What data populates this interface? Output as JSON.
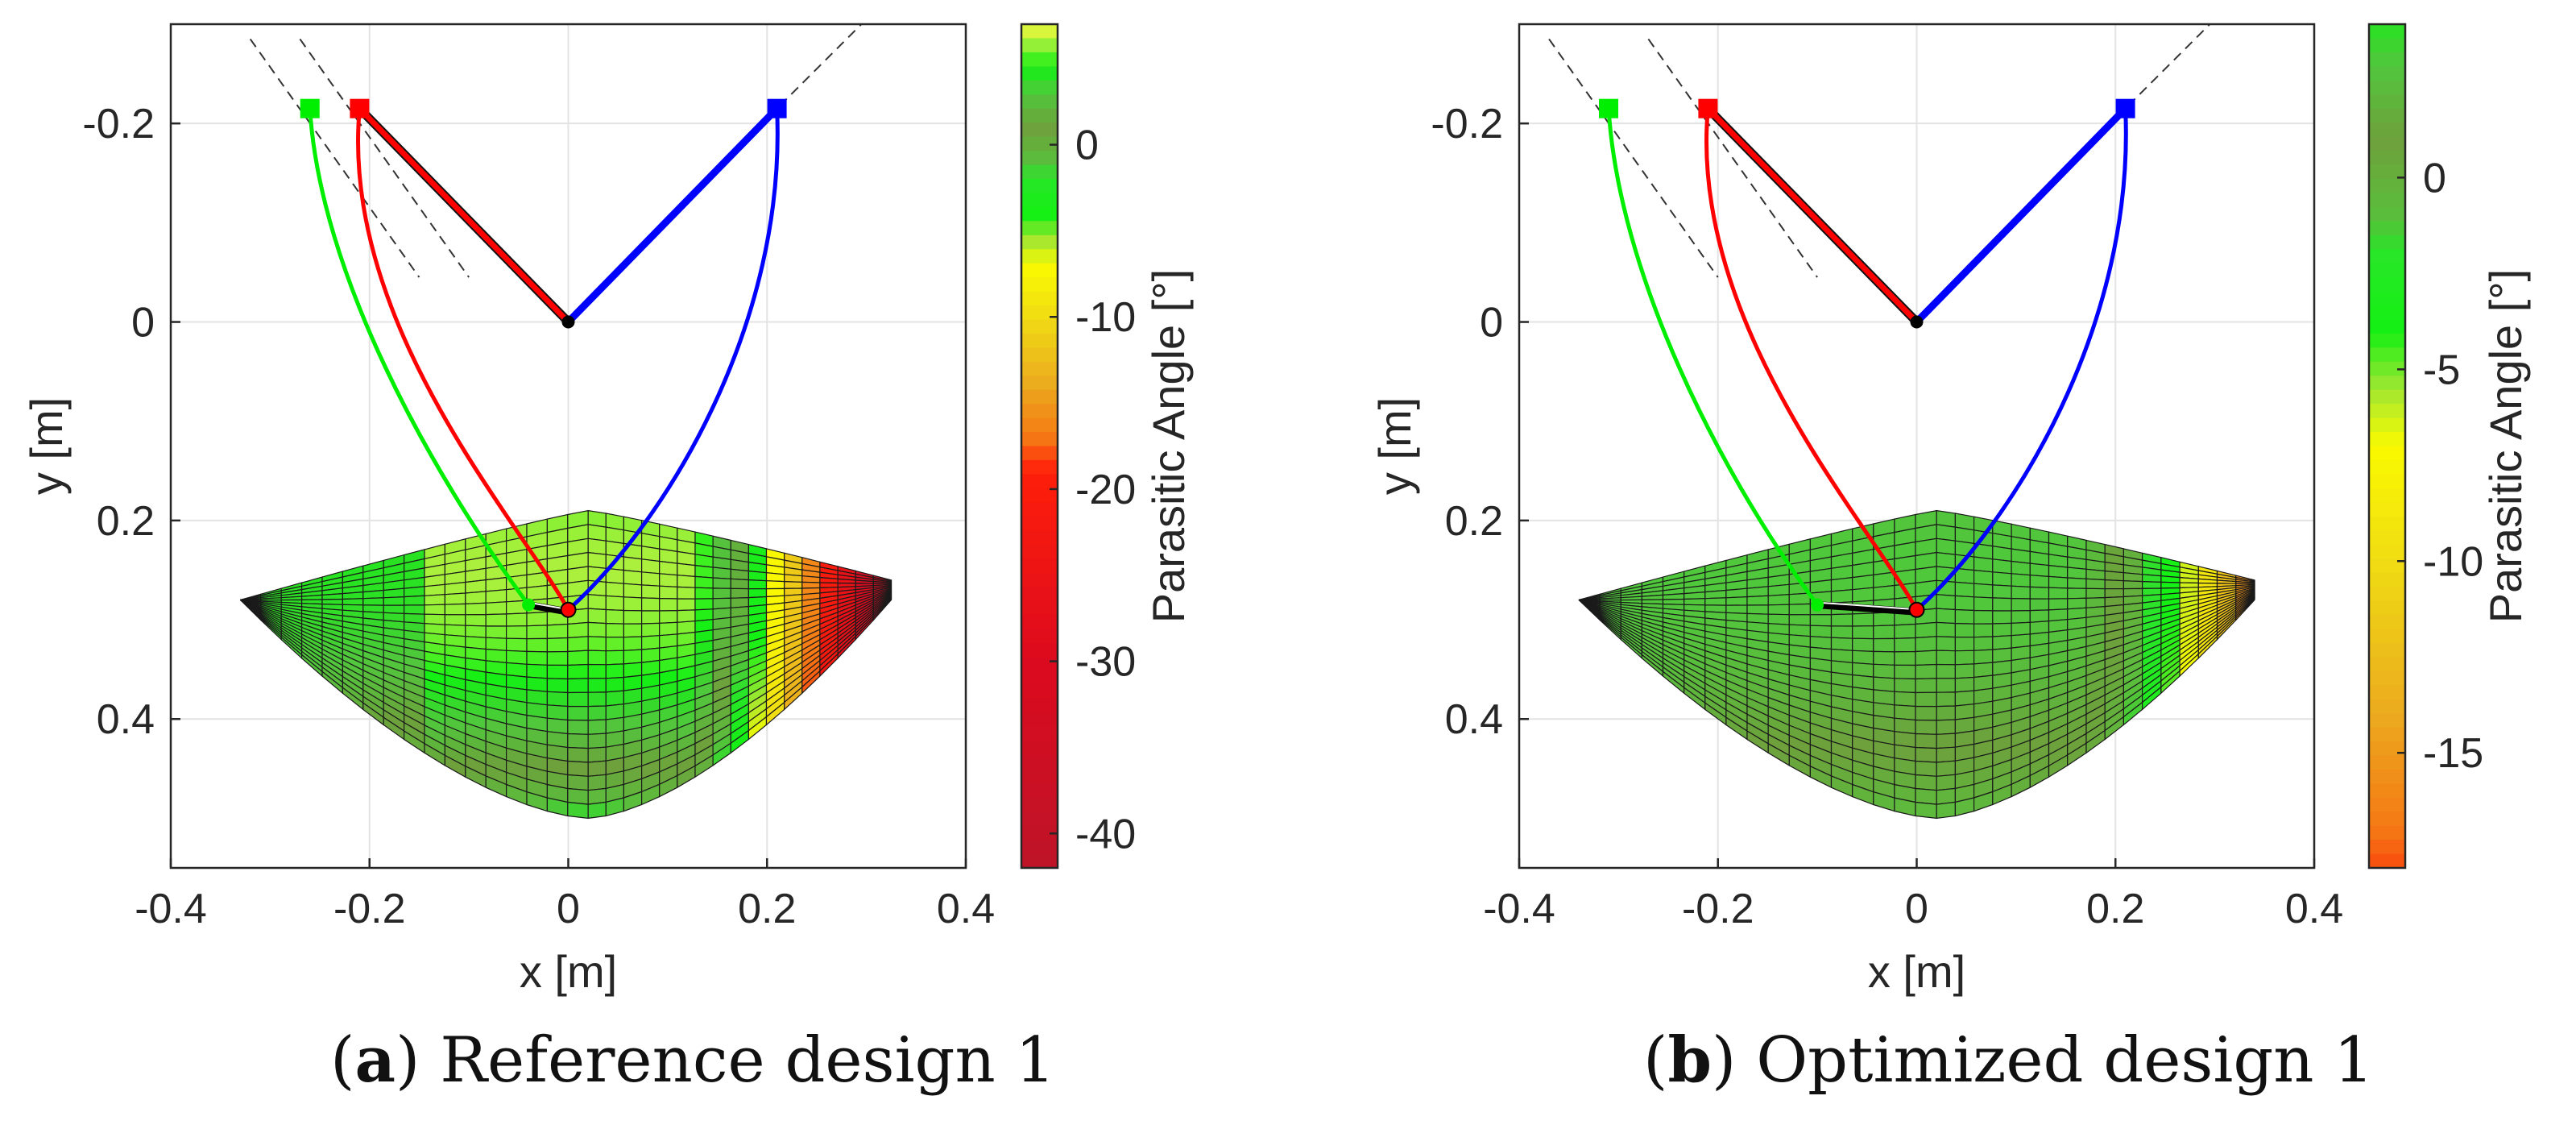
{
  "chart_data": [
    {
      "type": "surface",
      "caption_letter": "a",
      "caption_text": "Reference design 1",
      "xlabel": "x [m]",
      "ylabel": "y [m]",
      "xlim": [
        -0.4,
        0.4
      ],
      "ylim": [
        -0.3,
        0.55
      ],
      "y_reversed": true,
      "xticks": [
        "-0.4",
        "-0.2",
        "0",
        "0.2",
        "0.4"
      ],
      "yticks": [
        "-0.2",
        "0",
        "0.2",
        "0.4"
      ],
      "grid": true,
      "colorbar": {
        "label": "Parasitic Angle [°]",
        "range": [
          -42,
          7
        ],
        "ticks": [
          "0",
          "-10",
          "-20",
          "-30",
          "-40"
        ]
      },
      "mechanism": {
        "center": [
          0,
          0
        ],
        "end_effector": [
          0,
          0.29
        ],
        "anchors": [
          {
            "name": "green",
            "color": "#00ee00",
            "point": [
              -0.26,
              -0.215
            ]
          },
          {
            "name": "red",
            "color": "#ff0000",
            "point": [
              -0.21,
              -0.215
            ]
          },
          {
            "name": "blue",
            "color": "#0000ff",
            "point": [
              0.21,
              -0.215
            ]
          }
        ]
      }
    },
    {
      "type": "surface",
      "caption_letter": "b",
      "caption_text": "Optimized design 1",
      "xlabel": "x [m]",
      "ylabel": "y [m]",
      "xlim": [
        -0.4,
        0.4
      ],
      "ylim": [
        -0.3,
        0.55
      ],
      "y_reversed": true,
      "xticks": [
        "-0.4",
        "-0.2",
        "0",
        "0.2",
        "0.4"
      ],
      "yticks": [
        "-0.2",
        "0",
        "0.2",
        "0.4"
      ],
      "grid": true,
      "colorbar": {
        "label": "Parasitic Angle [°]",
        "range": [
          -18,
          4
        ],
        "ticks": [
          "0",
          "-5",
          "-10",
          "-15"
        ]
      },
      "mechanism": {
        "center": [
          0,
          0
        ],
        "end_effector": [
          0,
          0.29
        ],
        "anchors": [
          {
            "name": "green",
            "color": "#00ee00",
            "point": [
              -0.31,
              -0.215
            ]
          },
          {
            "name": "red",
            "color": "#ff0000",
            "point": [
              -0.21,
              -0.215
            ]
          },
          {
            "name": "blue",
            "color": "#0000ff",
            "point": [
              0.21,
              -0.215
            ]
          }
        ]
      }
    }
  ]
}
